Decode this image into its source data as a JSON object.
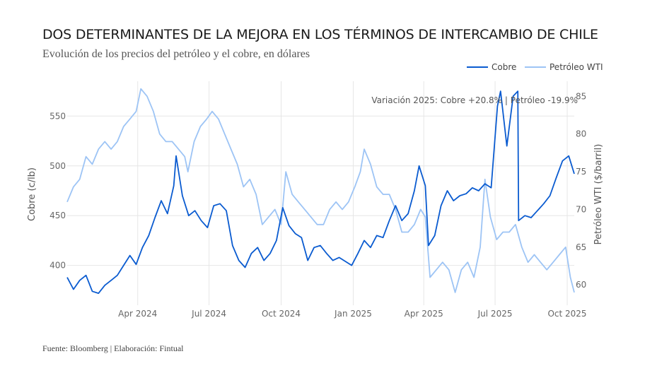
{
  "title": "DOS DETERMINANTES DE LA MEJORA EN LOS TÉRMINOS DE INTERCAMBIO DE CHILE",
  "subtitle": "Evolución de los precios del petróleo y el cobre, en dólares",
  "source": "Fuente: Bloomberg | Elaboración: Fintual",
  "annotation": "Variación 2025: Cobre +20.8% | Petróleo -19.9%",
  "colors": {
    "cobre": "#0a5bd0",
    "petroleo": "#9dc4f5",
    "grid": "#e6e6e6",
    "tick": "#666666"
  },
  "chart_data": {
    "type": "line",
    "title": "DOS DETERMINANTES DE LA MEJORA EN LOS TÉRMINOS DE INTERCAMBIO DE CHILE",
    "xlabel": "",
    "x_ticks": [
      "Apr 2024",
      "Jul 2024",
      "Oct 2024",
      "Jan 2025",
      "Apr 2025",
      "Jul 2025",
      "Oct 2025"
    ],
    "x_range": [
      "2024-01-02",
      "2025-10-10"
    ],
    "ylabel": "Cobre (c/lb)",
    "y2label": "Petróleo WTI ($/barril)",
    "ylim": [
      360,
      585
    ],
    "y2lim": [
      57.3,
      87
    ],
    "y_ticks": [
      400,
      450,
      500,
      550
    ],
    "y2_ticks": [
      60,
      65,
      70,
      75,
      80,
      85
    ],
    "legend": "top-right",
    "series": [
      {
        "name": "Cobre",
        "axis": "left",
        "x": [
          "2024-01-02",
          "2024-01-10",
          "2024-01-18",
          "2024-01-26",
          "2024-02-03",
          "2024-02-11",
          "2024-02-19",
          "2024-02-27",
          "2024-03-06",
          "2024-03-14",
          "2024-03-22",
          "2024-03-30",
          "2024-04-07",
          "2024-04-15",
          "2024-04-23",
          "2024-05-01",
          "2024-05-09",
          "2024-05-17",
          "2024-05-20",
          "2024-05-28",
          "2024-06-05",
          "2024-06-13",
          "2024-06-21",
          "2024-06-29",
          "2024-07-07",
          "2024-07-15",
          "2024-07-23",
          "2024-07-31",
          "2024-08-08",
          "2024-08-16",
          "2024-08-24",
          "2024-09-01",
          "2024-09-09",
          "2024-09-17",
          "2024-09-25",
          "2024-10-03",
          "2024-10-11",
          "2024-10-19",
          "2024-10-27",
          "2024-11-04",
          "2024-11-12",
          "2024-11-20",
          "2024-11-28",
          "2024-12-06",
          "2024-12-14",
          "2024-12-22",
          "2024-12-30",
          "2025-01-07",
          "2025-01-15",
          "2025-01-23",
          "2025-01-31",
          "2025-02-08",
          "2025-02-16",
          "2025-02-24",
          "2025-03-04",
          "2025-03-12",
          "2025-03-20",
          "2025-03-26",
          "2025-04-03",
          "2025-04-07",
          "2025-04-15",
          "2025-04-23",
          "2025-05-01",
          "2025-05-09",
          "2025-05-17",
          "2025-05-25",
          "2025-06-02",
          "2025-06-10",
          "2025-06-18",
          "2025-06-26",
          "2025-07-04",
          "2025-07-08",
          "2025-07-16",
          "2025-07-24",
          "2025-07-30",
          "2025-07-31",
          "2025-08-08",
          "2025-08-16",
          "2025-08-24",
          "2025-09-01",
          "2025-09-09",
          "2025-09-17",
          "2025-09-25",
          "2025-10-03",
          "2025-10-10"
        ],
        "values": [
          388,
          376,
          385,
          390,
          374,
          372,
          380,
          385,
          390,
          400,
          410,
          401,
          418,
          430,
          448,
          465,
          452,
          480,
          510,
          470,
          450,
          455,
          445,
          438,
          460,
          462,
          455,
          420,
          405,
          398,
          412,
          418,
          405,
          412,
          425,
          458,
          440,
          432,
          428,
          405,
          418,
          420,
          412,
          405,
          408,
          404,
          400,
          412,
          425,
          418,
          430,
          428,
          445,
          460,
          445,
          452,
          475,
          500,
          480,
          420,
          430,
          460,
          475,
          465,
          470,
          472,
          478,
          475,
          482,
          478,
          560,
          575,
          520,
          570,
          575,
          445,
          450,
          448,
          455,
          462,
          470,
          488,
          505,
          510,
          492
        ]
      },
      {
        "name": "Petróleo WTI",
        "axis": "right",
        "x": [
          "2024-01-02",
          "2024-01-10",
          "2024-01-18",
          "2024-01-26",
          "2024-02-03",
          "2024-02-11",
          "2024-02-19",
          "2024-02-27",
          "2024-03-06",
          "2024-03-14",
          "2024-03-22",
          "2024-03-30",
          "2024-04-05",
          "2024-04-13",
          "2024-04-21",
          "2024-04-29",
          "2024-05-07",
          "2024-05-15",
          "2024-05-23",
          "2024-05-31",
          "2024-06-04",
          "2024-06-12",
          "2024-06-20",
          "2024-06-28",
          "2024-07-05",
          "2024-07-13",
          "2024-07-21",
          "2024-07-29",
          "2024-08-06",
          "2024-08-14",
          "2024-08-22",
          "2024-08-30",
          "2024-09-07",
          "2024-09-15",
          "2024-09-23",
          "2024-10-01",
          "2024-10-07",
          "2024-10-15",
          "2024-10-23",
          "2024-10-31",
          "2024-11-08",
          "2024-11-16",
          "2024-11-24",
          "2024-12-02",
          "2024-12-10",
          "2024-12-18",
          "2024-12-26",
          "2025-01-03",
          "2025-01-10",
          "2025-01-15",
          "2025-01-23",
          "2025-01-31",
          "2025-02-08",
          "2025-02-16",
          "2025-02-24",
          "2025-03-04",
          "2025-03-12",
          "2025-03-20",
          "2025-03-28",
          "2025-04-03",
          "2025-04-09",
          "2025-04-17",
          "2025-04-25",
          "2025-05-03",
          "2025-05-11",
          "2025-05-19",
          "2025-05-27",
          "2025-06-04",
          "2025-06-12",
          "2025-06-18",
          "2025-06-25",
          "2025-07-03",
          "2025-07-11",
          "2025-07-19",
          "2025-07-27",
          "2025-08-04",
          "2025-08-12",
          "2025-08-20",
          "2025-08-28",
          "2025-09-05",
          "2025-09-13",
          "2025-09-21",
          "2025-09-29",
          "2025-10-05",
          "2025-10-10"
        ],
        "values": [
          71,
          73,
          74,
          77,
          76,
          78,
          79,
          78,
          79,
          81,
          82,
          83,
          86,
          85,
          83,
          80,
          79,
          79,
          78,
          77,
          75,
          79,
          81,
          82,
          83,
          82,
          80,
          78,
          76,
          73,
          74,
          72,
          68,
          69,
          70,
          68,
          75,
          72,
          71,
          70,
          69,
          68,
          68,
          70,
          71,
          70,
          71,
          73,
          75,
          78,
          76,
          73,
          72,
          72,
          70,
          67,
          67,
          68,
          70,
          69,
          61,
          62,
          63,
          62,
          59,
          62,
          63,
          61,
          65,
          74,
          69,
          66,
          67,
          67,
          68,
          65,
          63,
          64,
          63,
          62,
          63,
          64,
          65,
          61,
          59
        ]
      }
    ]
  }
}
